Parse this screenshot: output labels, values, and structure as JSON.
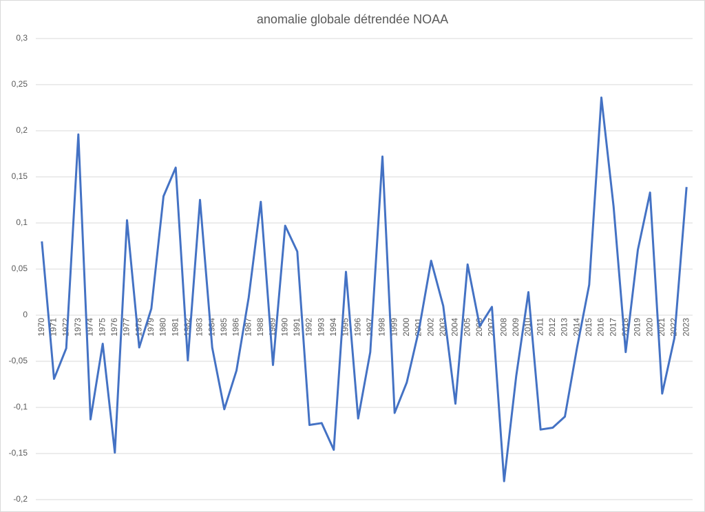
{
  "chart_data": {
    "type": "line",
    "title": "anomalie globale détrendée NOAA",
    "categories": [
      "1970",
      "1971",
      "1972",
      "1973",
      "1974",
      "1975",
      "1976",
      "1977",
      "1978",
      "1979",
      "1980",
      "1981",
      "1982",
      "1983",
      "1984",
      "1985",
      "1986",
      "1987",
      "1988",
      "1989",
      "1990",
      "1991",
      "1992",
      "1993",
      "1994",
      "1995",
      "1996",
      "1997",
      "1998",
      "1999",
      "2000",
      "2001",
      "2002",
      "2003",
      "2004",
      "2005",
      "2006",
      "2007",
      "2008",
      "2009",
      "2010",
      "2011",
      "2012",
      "2013",
      "2014",
      "2015",
      "2016",
      "2017",
      "2018",
      "2019",
      "2020",
      "2021",
      "2022",
      "2023"
    ],
    "values": [
      0.08,
      -0.069,
      -0.036,
      0.196,
      -0.113,
      -0.031,
      -0.149,
      0.103,
      -0.035,
      0.007,
      0.129,
      0.16,
      -0.049,
      0.125,
      -0.035,
      -0.102,
      -0.06,
      0.019,
      0.123,
      -0.054,
      0.097,
      0.069,
      -0.119,
      -0.117,
      -0.146,
      0.047,
      -0.112,
      -0.04,
      0.172,
      -0.106,
      -0.073,
      -0.016,
      0.059,
      0.01,
      -0.096,
      0.055,
      -0.012,
      0.009,
      -0.18,
      -0.066,
      0.025,
      -0.124,
      -0.122,
      -0.11,
      -0.035,
      0.033,
      0.236,
      0.118,
      -0.04,
      0.071,
      0.133,
      -0.085,
      -0.025,
      0.139
    ],
    "color": "#4472c4",
    "ylim": [
      -0.2,
      0.3
    ],
    "yticks": [
      {
        "value": -0.2,
        "label": "-0,2"
      },
      {
        "value": -0.15,
        "label": "-0,15"
      },
      {
        "value": -0.1,
        "label": "-0,1"
      },
      {
        "value": -0.05,
        "label": "-0,05"
      },
      0,
      {
        "value": 0.05,
        "label": "0,05"
      },
      {
        "value": 0.1,
        "label": "0,1"
      },
      {
        "value": 0.15,
        "label": "0,15"
      },
      {
        "value": 0.2,
        "label": "0,2"
      },
      {
        "value": 0.25,
        "label": "0,25"
      },
      {
        "value": 0.3,
        "label": "0,3"
      }
    ],
    "grid": true
  }
}
